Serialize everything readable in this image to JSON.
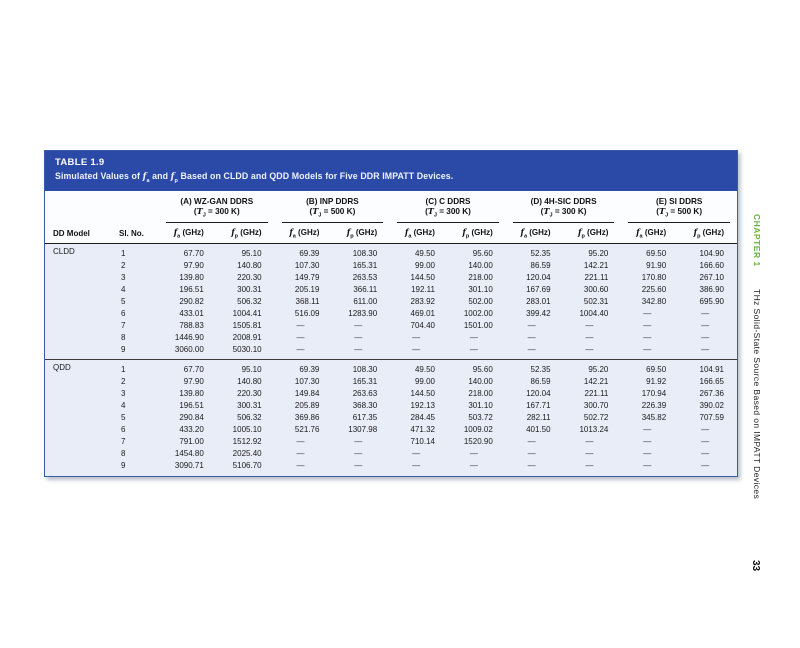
{
  "colors": {
    "band_blue": "#2b4aa8",
    "table_body_bg": "#e9edf8",
    "chapter_green": "#68b43e",
    "table_border": "#3c5aa9"
  },
  "side": {
    "chapter": "CHAPTER 1",
    "book_title": "THz Solid-State Source Based on IMPATT Devices",
    "page_number": "33"
  },
  "table": {
    "label": "TABLE 1.9",
    "caption": {
      "pre": "Simulated Values of ",
      "sym1": "f",
      "sub1": "a",
      "mid": " and ",
      "sym2": "f",
      "sub2": "p",
      "post": " Based on CLDD and QDD Models for Five DDR IMPATT Devices."
    },
    "header": {
      "model": "DD Model",
      "slno": "Sl. No.",
      "temp_open": "(",
      "temp_sym": "T",
      "temp_sub": "J",
      "temp_eq": " = ",
      "temp_close": ")",
      "freq_sym": "f",
      "freq_subs": [
        "a",
        "p"
      ],
      "freq_unit": " (GHz)",
      "groups": [
        {
          "name": "(A) WZ-GAN DDRS",
          "temp": "300 K"
        },
        {
          "name": "(B) INP DDRS",
          "temp": "500 K"
        },
        {
          "name": "(C) C DDRS",
          "temp": "300 K"
        },
        {
          "name": "(D) 4H-SIC DDRS",
          "temp": "300 K"
        },
        {
          "name": "(E) SI DDRS",
          "temp": "500 K"
        }
      ]
    },
    "sections": [
      {
        "model": "CLDD",
        "rows": [
          [
            "1",
            "67.70",
            "95.10",
            "69.39",
            "108.30",
            "49.50",
            "95.60",
            "52.35",
            "95.20",
            "69.50",
            "104.90"
          ],
          [
            "2",
            "97.90",
            "140.80",
            "107.30",
            "165.31",
            "99.00",
            "140.00",
            "86.59",
            "142.21",
            "91.90",
            "166.60"
          ],
          [
            "3",
            "139.80",
            "220.30",
            "149.79",
            "263.53",
            "144.50",
            "218.00",
            "120.04",
            "221.11",
            "170.80",
            "267.10"
          ],
          [
            "4",
            "196.51",
            "300.31",
            "205.19",
            "366.11",
            "192.11",
            "301.10",
            "167.69",
            "300.60",
            "225.60",
            "386.90"
          ],
          [
            "5",
            "290.82",
            "506.32",
            "368.11",
            "611.00",
            "283.92",
            "502.00",
            "283.01",
            "502.31",
            "342.80",
            "695.90"
          ],
          [
            "6",
            "433.01",
            "1004.41",
            "516.09",
            "1283.90",
            "469.01",
            "1002.00",
            "399.42",
            "1004.40",
            "—",
            "—"
          ],
          [
            "7",
            "788.83",
            "1505.81",
            "—",
            "—",
            "704.40",
            "1501.00",
            "—",
            "—",
            "—",
            "—"
          ],
          [
            "8",
            "1446.90",
            "2008.91",
            "—",
            "—",
            "—",
            "—",
            "—",
            "—",
            "—",
            "—"
          ],
          [
            "9",
            "3060.00",
            "5030.10",
            "—",
            "—",
            "—",
            "—",
            "—",
            "—",
            "—",
            "—"
          ]
        ]
      },
      {
        "model": "QDD",
        "rows": [
          [
            "1",
            "67.70",
            "95.10",
            "69.39",
            "108.30",
            "49.50",
            "95.60",
            "52.35",
            "95.20",
            "69.50",
            "104.91"
          ],
          [
            "2",
            "97.90",
            "140.80",
            "107.30",
            "165.31",
            "99.00",
            "140.00",
            "86.59",
            "142.21",
            "91.92",
            "166.65"
          ],
          [
            "3",
            "139.80",
            "220.30",
            "149.84",
            "263.63",
            "144.50",
            "218.00",
            "120.04",
            "221.11",
            "170.94",
            "267.36"
          ],
          [
            "4",
            "196.51",
            "300.31",
            "205.89",
            "368.30",
            "192.13",
            "301.10",
            "167.71",
            "300.70",
            "226.39",
            "390.02"
          ],
          [
            "5",
            "290.84",
            "506.32",
            "369.86",
            "617.35",
            "284.45",
            "503.72",
            "282.11",
            "502.72",
            "345.82",
            "707.59"
          ],
          [
            "6",
            "433.20",
            "1005.10",
            "521.76",
            "1307.98",
            "471.32",
            "1009.02",
            "401.50",
            "1013.24",
            "—",
            "—"
          ],
          [
            "7",
            "791.00",
            "1512.92",
            "—",
            "—",
            "710.14",
            "1520.90",
            "—",
            "—",
            "—",
            "—"
          ],
          [
            "8",
            "1454.80",
            "2025.40",
            "—",
            "—",
            "—",
            "—",
            "—",
            "—",
            "—",
            "—"
          ],
          [
            "9",
            "3090.71",
            "5106.70",
            "—",
            "—",
            "—",
            "—",
            "—",
            "—",
            "—",
            "—"
          ]
        ]
      }
    ]
  }
}
